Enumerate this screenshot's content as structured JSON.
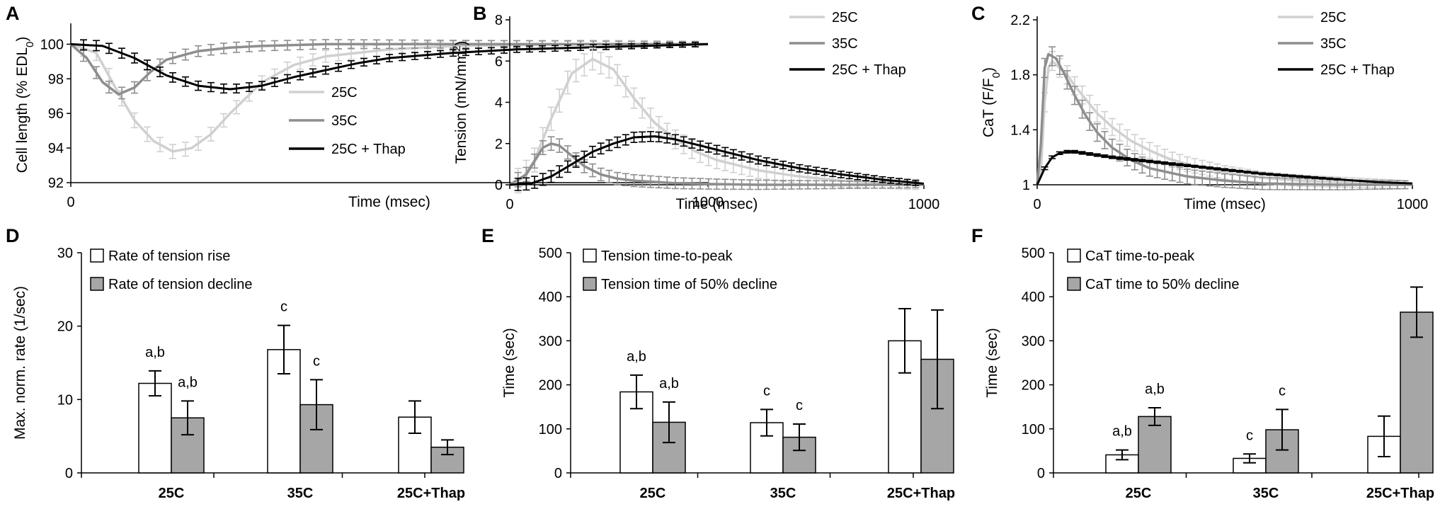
{
  "colors": {
    "c25": "#d0d0d0",
    "c35": "#8e8e8e",
    "cThap": "#000000",
    "barOpen": "#ffffff",
    "barFill": "#a6a6a6"
  },
  "panels": {
    "A": {
      "letter": "A",
      "chart_data": {
        "type": "line",
        "xlabel": "Time (msec)",
        "ylabel_main": "Cell length (% EDL",
        "ylabel_sub": "0",
        "ylabel_end": ")",
        "xlim": [
          0,
          1000
        ],
        "ylim": [
          92,
          101
        ],
        "xticks": [
          0,
          1000
        ],
        "xtick_labels": [
          "0",
          "1000"
        ],
        "yticks": [
          92,
          94,
          96,
          98,
          100
        ],
        "ytick_labels": [
          "92",
          "94",
          "96",
          "98",
          "100"
        ],
        "legend": [
          "25C",
          "35C",
          "25C + Thap"
        ],
        "series": [
          {
            "name": "25C",
            "x": [
              0,
              40,
              70,
              100,
              130,
              160,
              190,
              220,
              250,
              300,
              350,
              400,
              500,
              600,
              800,
              1000
            ],
            "y": [
              100,
              99.5,
              97.5,
              95.6,
              94.4,
              93.8,
              94.0,
              94.8,
              96.0,
              97.8,
              98.8,
              99.3,
              99.7,
              99.9,
              100,
              100
            ],
            "err": 0.45
          },
          {
            "name": "35C",
            "x": [
              0,
              25,
              50,
              75,
              100,
              125,
              150,
              200,
              250,
              300,
              400,
              500,
              600,
              800,
              1000
            ],
            "y": [
              100,
              99.2,
              97.8,
              97.1,
              97.5,
              98.4,
              99.1,
              99.6,
              99.8,
              99.9,
              100,
              100,
              100,
              100,
              100
            ],
            "err": 0.35
          },
          {
            "name": "25C + Thap",
            "x": [
              0,
              50,
              100,
              150,
              200,
              250,
              300,
              350,
              400,
              450,
              500,
              600,
              700,
              800,
              900,
              1000
            ],
            "y": [
              100,
              99.9,
              99.2,
              98.2,
              97.6,
              97.4,
              97.6,
              98.1,
              98.5,
              98.9,
              99.2,
              99.5,
              99.7,
              99.8,
              99.9,
              100
            ],
            "err": 0.3
          }
        ]
      }
    },
    "B": {
      "letter": "B",
      "chart_data": {
        "type": "line",
        "xlabel": "Time (msec)",
        "ylabel_main": "Tension (mN/mm",
        "ylabel_sup": "2",
        "ylabel_end": ")",
        "xlim": [
          0,
          1000
        ],
        "ylim": [
          0,
          8
        ],
        "xticks": [
          0,
          1000
        ],
        "xtick_labels": [
          "0",
          "1000"
        ],
        "yticks": [
          0,
          2,
          4,
          6,
          8
        ],
        "ytick_labels": [
          "0",
          "2",
          "4",
          "6",
          "8"
        ],
        "legend": [
          "25C",
          "35C",
          "25C + Thap"
        ],
        "series": [
          {
            "name": "25C",
            "x": [
              0,
              30,
              60,
              100,
              150,
              200,
              250,
              300,
              350,
              400,
              450,
              500,
              600,
              700,
              800,
              900,
              1000
            ],
            "y": [
              0,
              0.3,
              1.2,
              3.2,
              5.4,
              6.1,
              5.6,
              4.2,
              3.0,
              2.2,
              1.6,
              1.2,
              0.7,
              0.4,
              0.2,
              0.1,
              0
            ],
            "err": 0.6
          },
          {
            "name": "35C",
            "x": [
              0,
              40,
              80,
              100,
              120,
              150,
              180,
              220,
              260,
              300,
              400,
              500,
              600,
              800,
              1000
            ],
            "y": [
              0,
              0.5,
              1.8,
              2.0,
              1.9,
              1.4,
              0.9,
              0.5,
              0.3,
              0.2,
              0.08,
              0.03,
              0,
              0,
              0
            ],
            "err": 0.35
          },
          {
            "name": "25C + Thap",
            "x": [
              0,
              50,
              100,
              150,
              200,
              250,
              300,
              350,
              400,
              450,
              500,
              600,
              700,
              800,
              900,
              1000
            ],
            "y": [
              0,
              0.05,
              0.4,
              1.0,
              1.6,
              2.0,
              2.3,
              2.35,
              2.2,
              1.95,
              1.7,
              1.2,
              0.8,
              0.5,
              0.25,
              0.05
            ],
            "err": 0.3
          }
        ]
      }
    },
    "C": {
      "letter": "C",
      "chart_data": {
        "type": "line",
        "xlabel": "Time (msec)",
        "ylabel_main": "CaT (F/F",
        "ylabel_sub": "0",
        "ylabel_end": ")",
        "xlim": [
          0,
          1000
        ],
        "ylim": [
          1,
          2.2
        ],
        "xticks": [
          0,
          1000
        ],
        "xtick_labels": [
          "0",
          "1000"
        ],
        "yticks": [
          1,
          1.4,
          1.8,
          2.2
        ],
        "ytick_labels": [
          "1",
          "1.4",
          "1.8",
          "2.2"
        ],
        "legend": [
          "25C",
          "35C",
          "25C + Thap"
        ],
        "series": [
          {
            "name": "25C",
            "x": [
              0,
              10,
              20,
              30,
              40,
              60,
              80,
              100,
              130,
              160,
              200,
              250,
              300,
              350,
              400,
              500,
              600,
              700,
              800,
              1000
            ],
            "y": [
              1,
              1.1,
              1.6,
              1.85,
              1.9,
              1.85,
              1.8,
              1.72,
              1.62,
              1.52,
              1.42,
              1.32,
              1.25,
              1.19,
              1.15,
              1.09,
              1.05,
              1.03,
              1.02,
              1.0
            ],
            "err": 0.07
          },
          {
            "name": "35C",
            "x": [
              0,
              10,
              20,
              30,
              50,
              70,
              100,
              130,
              160,
              200,
              250,
              300,
              400,
              500,
              600,
              800,
              1000
            ],
            "y": [
              1,
              1.3,
              1.85,
              1.95,
              1.92,
              1.82,
              1.65,
              1.5,
              1.38,
              1.27,
              1.18,
              1.12,
              1.06,
              1.03,
              1.01,
              1.0,
              1.0
            ],
            "err": 0.07
          },
          {
            "name": "25C + Thap",
            "x": [
              0,
              20,
              40,
              60,
              80,
              100,
              150,
              200,
              300,
              400,
              500,
              600,
              700,
              800,
              900,
              1000
            ],
            "y": [
              1,
              1.12,
              1.2,
              1.23,
              1.24,
              1.24,
              1.22,
              1.2,
              1.17,
              1.14,
              1.11,
              1.08,
              1.06,
              1.04,
              1.02,
              1.01
            ],
            "err": 0.01
          }
        ]
      }
    },
    "D": {
      "letter": "D",
      "chart_data": {
        "type": "bar",
        "ylabel": "Max. norm. rate (1/sec)",
        "ylim": [
          0,
          30
        ],
        "yticks": [
          0,
          10,
          20,
          30
        ],
        "ytick_labels": [
          "0",
          "10",
          "20",
          "30"
        ],
        "categories": [
          "25C",
          "35C",
          "25C+Thap"
        ],
        "series": [
          {
            "name": "Rate of tension rise",
            "style": "open",
            "values": [
              12.2,
              16.8,
              7.6
            ],
            "errors": [
              1.7,
              3.3,
              2.2
            ],
            "labels": [
              "a,b",
              "c",
              ""
            ]
          },
          {
            "name": "Rate of tension decline",
            "style": "filled",
            "values": [
              7.5,
              9.3,
              3.5
            ],
            "errors": [
              2.3,
              3.4,
              1.0
            ],
            "labels": [
              "a,b",
              "c",
              ""
            ]
          }
        ]
      }
    },
    "E": {
      "letter": "E",
      "chart_data": {
        "type": "bar",
        "ylabel": "Time (sec)",
        "ylim": [
          0,
          500
        ],
        "yticks": [
          0,
          100,
          200,
          300,
          400,
          500
        ],
        "ytick_labels": [
          "0",
          "100",
          "200",
          "300",
          "400",
          "500"
        ],
        "categories": [
          "25C",
          "35C",
          "25C+Thap"
        ],
        "series": [
          {
            "name": "Tension time-to-peak",
            "style": "open",
            "values": [
              184,
              114,
              300
            ],
            "errors": [
              38,
              30,
              73
            ],
            "labels": [
              "a,b",
              "c",
              ""
            ]
          },
          {
            "name": "Tension time of 50% decline",
            "style": "filled",
            "values": [
              115,
              81,
              258
            ],
            "errors": [
              46,
              30,
              112
            ],
            "labels": [
              "a,b",
              "c",
              ""
            ]
          }
        ]
      }
    },
    "F": {
      "letter": "F",
      "chart_data": {
        "type": "bar",
        "ylabel": "Time (sec)",
        "ylim": [
          0,
          500
        ],
        "yticks": [
          0,
          100,
          200,
          300,
          400,
          500
        ],
        "ytick_labels": [
          "0",
          "100",
          "200",
          "300",
          "400",
          "500"
        ],
        "categories": [
          "25C",
          "35C",
          "25C+Thap"
        ],
        "series": [
          {
            "name": "CaT time-to-peak",
            "style": "open",
            "values": [
              41,
              33,
              83
            ],
            "errors": [
              11,
              10,
              46
            ],
            "labels": [
              "a,b",
              "c",
              ""
            ]
          },
          {
            "name": "CaT time to 50% decline",
            "style": "filled",
            "values": [
              128,
              98,
              365
            ],
            "errors": [
              20,
              46,
              57
            ],
            "labels": [
              "a,b",
              "c",
              ""
            ]
          }
        ]
      }
    }
  }
}
